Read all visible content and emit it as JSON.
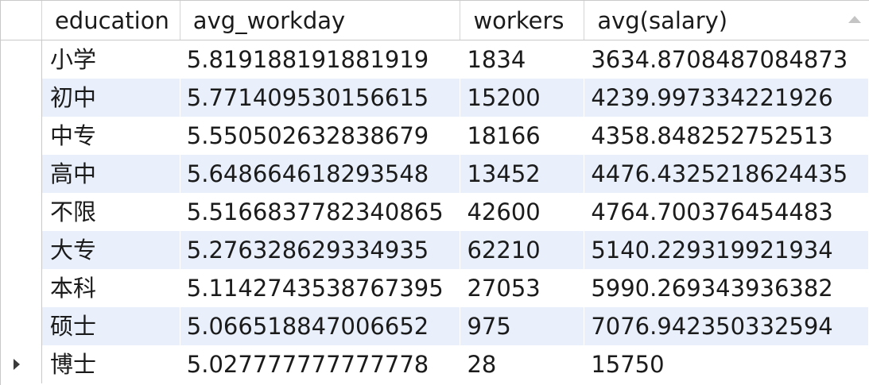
{
  "columns": [
    "education",
    "avg_workday",
    "workers",
    "avg(salary)"
  ],
  "rows": [
    [
      "小学",
      "5.819188191881919",
      "1834",
      "3634.8708487084873"
    ],
    [
      "初中",
      "5.771409530156615",
      "15200",
      "4239.997334221926"
    ],
    [
      "中专",
      "5.550502632838679",
      "18166",
      "4358.848252752513"
    ],
    [
      "高中",
      "5.648664618293548",
      "13452",
      "4476.4325218624435"
    ],
    [
      "不限",
      "5.5166837782340865",
      "42600",
      "4764.700376454483"
    ],
    [
      "大专",
      "5.276328629334935",
      "62210",
      "5140.229319921934"
    ],
    [
      "本科",
      "5.1142743538767395",
      "27053",
      "5990.269343936382"
    ],
    [
      "硕士",
      "5.066518847006652",
      "975",
      "7076.942350332594"
    ],
    [
      "博士",
      "5.027777777777778",
      "28",
      "15750"
    ]
  ],
  "current_row_index": 8,
  "icons": {
    "sort": "sort-ascending-icon",
    "current_row": "current-row-arrow-icon"
  }
}
